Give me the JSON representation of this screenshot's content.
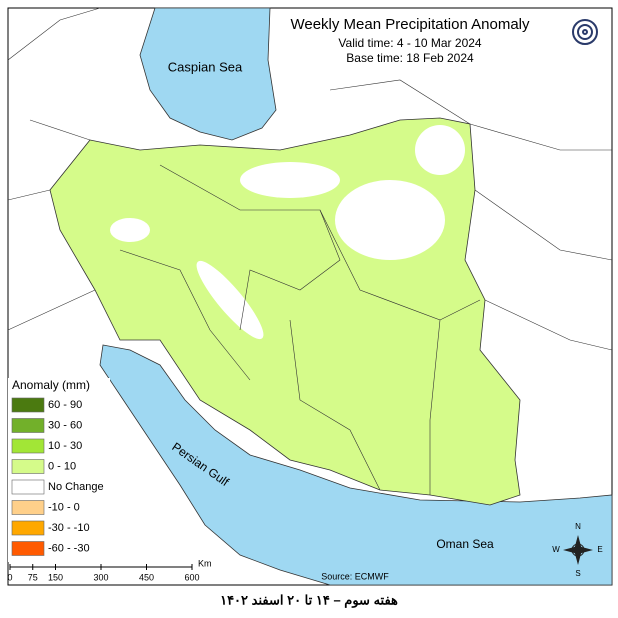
{
  "title": "Weekly Mean Precipitation Anomaly",
  "valid_time": "Valid time:  4 - 10 Mar 2024",
  "base_time": "Base time: 18 Feb 2024",
  "seas": [
    "Caspian Sea",
    "Persian Gulf",
    "Oman Sea"
  ],
  "legend": {
    "title": "Anomaly (mm)",
    "items": [
      {
        "label": "60 - 90",
        "color": "#4b7a10"
      },
      {
        "label": "30 - 60",
        "color": "#72b02a"
      },
      {
        "label": "10 - 30",
        "color": "#a2e636"
      },
      {
        "label": "0 - 10",
        "color": "#d5fb8a"
      },
      {
        "label": "No Change",
        "color": "#ffffff"
      },
      {
        "label": "-10 - 0",
        "color": "#ffd08a"
      },
      {
        "label": "-30 - -10",
        "color": "#ffa800"
      },
      {
        "label": "-60 - -30",
        "color": "#ff5a00"
      }
    ]
  },
  "scale_bar": {
    "ticks": [
      0,
      75,
      150,
      300,
      450,
      600
    ],
    "unit": "Km"
  },
  "source": "Source: ECMWF",
  "compass": [
    "N",
    "E",
    "S",
    "W"
  ],
  "caption": "هفته سوم – ۱۴ تا ۲۰ اسفند ۱۴۰۲"
}
